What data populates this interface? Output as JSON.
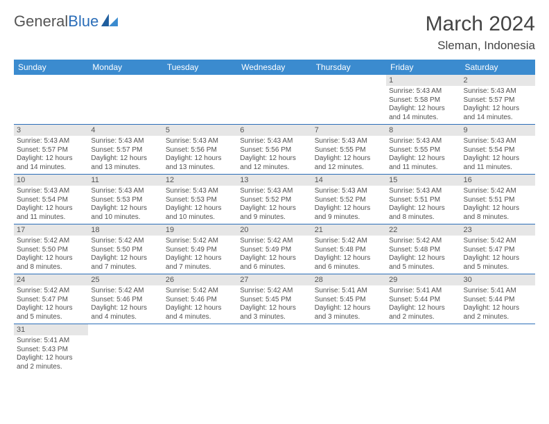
{
  "brand": {
    "part1": "General",
    "part2": "Blue"
  },
  "title": "March 2024",
  "location": "Sleman, Indonesia",
  "colors": {
    "header_bg": "#3b8bcf",
    "header_fg": "#ffffff",
    "daynum_bg": "#e6e6e6",
    "rule": "#2a6db8",
    "text": "#505050"
  },
  "weekdays": [
    "Sunday",
    "Monday",
    "Tuesday",
    "Wednesday",
    "Thursday",
    "Friday",
    "Saturday"
  ],
  "weeks": [
    [
      null,
      null,
      null,
      null,
      null,
      {
        "n": "1",
        "sr": "Sunrise: 5:43 AM",
        "ss": "Sunset: 5:58 PM",
        "d1": "Daylight: 12 hours",
        "d2": "and 14 minutes."
      },
      {
        "n": "2",
        "sr": "Sunrise: 5:43 AM",
        "ss": "Sunset: 5:57 PM",
        "d1": "Daylight: 12 hours",
        "d2": "and 14 minutes."
      }
    ],
    [
      {
        "n": "3",
        "sr": "Sunrise: 5:43 AM",
        "ss": "Sunset: 5:57 PM",
        "d1": "Daylight: 12 hours",
        "d2": "and 14 minutes."
      },
      {
        "n": "4",
        "sr": "Sunrise: 5:43 AM",
        "ss": "Sunset: 5:57 PM",
        "d1": "Daylight: 12 hours",
        "d2": "and 13 minutes."
      },
      {
        "n": "5",
        "sr": "Sunrise: 5:43 AM",
        "ss": "Sunset: 5:56 PM",
        "d1": "Daylight: 12 hours",
        "d2": "and 13 minutes."
      },
      {
        "n": "6",
        "sr": "Sunrise: 5:43 AM",
        "ss": "Sunset: 5:56 PM",
        "d1": "Daylight: 12 hours",
        "d2": "and 12 minutes."
      },
      {
        "n": "7",
        "sr": "Sunrise: 5:43 AM",
        "ss": "Sunset: 5:55 PM",
        "d1": "Daylight: 12 hours",
        "d2": "and 12 minutes."
      },
      {
        "n": "8",
        "sr": "Sunrise: 5:43 AM",
        "ss": "Sunset: 5:55 PM",
        "d1": "Daylight: 12 hours",
        "d2": "and 11 minutes."
      },
      {
        "n": "9",
        "sr": "Sunrise: 5:43 AM",
        "ss": "Sunset: 5:54 PM",
        "d1": "Daylight: 12 hours",
        "d2": "and 11 minutes."
      }
    ],
    [
      {
        "n": "10",
        "sr": "Sunrise: 5:43 AM",
        "ss": "Sunset: 5:54 PM",
        "d1": "Daylight: 12 hours",
        "d2": "and 11 minutes."
      },
      {
        "n": "11",
        "sr": "Sunrise: 5:43 AM",
        "ss": "Sunset: 5:53 PM",
        "d1": "Daylight: 12 hours",
        "d2": "and 10 minutes."
      },
      {
        "n": "12",
        "sr": "Sunrise: 5:43 AM",
        "ss": "Sunset: 5:53 PM",
        "d1": "Daylight: 12 hours",
        "d2": "and 10 minutes."
      },
      {
        "n": "13",
        "sr": "Sunrise: 5:43 AM",
        "ss": "Sunset: 5:52 PM",
        "d1": "Daylight: 12 hours",
        "d2": "and 9 minutes."
      },
      {
        "n": "14",
        "sr": "Sunrise: 5:43 AM",
        "ss": "Sunset: 5:52 PM",
        "d1": "Daylight: 12 hours",
        "d2": "and 9 minutes."
      },
      {
        "n": "15",
        "sr": "Sunrise: 5:43 AM",
        "ss": "Sunset: 5:51 PM",
        "d1": "Daylight: 12 hours",
        "d2": "and 8 minutes."
      },
      {
        "n": "16",
        "sr": "Sunrise: 5:42 AM",
        "ss": "Sunset: 5:51 PM",
        "d1": "Daylight: 12 hours",
        "d2": "and 8 minutes."
      }
    ],
    [
      {
        "n": "17",
        "sr": "Sunrise: 5:42 AM",
        "ss": "Sunset: 5:50 PM",
        "d1": "Daylight: 12 hours",
        "d2": "and 8 minutes."
      },
      {
        "n": "18",
        "sr": "Sunrise: 5:42 AM",
        "ss": "Sunset: 5:50 PM",
        "d1": "Daylight: 12 hours",
        "d2": "and 7 minutes."
      },
      {
        "n": "19",
        "sr": "Sunrise: 5:42 AM",
        "ss": "Sunset: 5:49 PM",
        "d1": "Daylight: 12 hours",
        "d2": "and 7 minutes."
      },
      {
        "n": "20",
        "sr": "Sunrise: 5:42 AM",
        "ss": "Sunset: 5:49 PM",
        "d1": "Daylight: 12 hours",
        "d2": "and 6 minutes."
      },
      {
        "n": "21",
        "sr": "Sunrise: 5:42 AM",
        "ss": "Sunset: 5:48 PM",
        "d1": "Daylight: 12 hours",
        "d2": "and 6 minutes."
      },
      {
        "n": "22",
        "sr": "Sunrise: 5:42 AM",
        "ss": "Sunset: 5:48 PM",
        "d1": "Daylight: 12 hours",
        "d2": "and 5 minutes."
      },
      {
        "n": "23",
        "sr": "Sunrise: 5:42 AM",
        "ss": "Sunset: 5:47 PM",
        "d1": "Daylight: 12 hours",
        "d2": "and 5 minutes."
      }
    ],
    [
      {
        "n": "24",
        "sr": "Sunrise: 5:42 AM",
        "ss": "Sunset: 5:47 PM",
        "d1": "Daylight: 12 hours",
        "d2": "and 5 minutes."
      },
      {
        "n": "25",
        "sr": "Sunrise: 5:42 AM",
        "ss": "Sunset: 5:46 PM",
        "d1": "Daylight: 12 hours",
        "d2": "and 4 minutes."
      },
      {
        "n": "26",
        "sr": "Sunrise: 5:42 AM",
        "ss": "Sunset: 5:46 PM",
        "d1": "Daylight: 12 hours",
        "d2": "and 4 minutes."
      },
      {
        "n": "27",
        "sr": "Sunrise: 5:42 AM",
        "ss": "Sunset: 5:45 PM",
        "d1": "Daylight: 12 hours",
        "d2": "and 3 minutes."
      },
      {
        "n": "28",
        "sr": "Sunrise: 5:41 AM",
        "ss": "Sunset: 5:45 PM",
        "d1": "Daylight: 12 hours",
        "d2": "and 3 minutes."
      },
      {
        "n": "29",
        "sr": "Sunrise: 5:41 AM",
        "ss": "Sunset: 5:44 PM",
        "d1": "Daylight: 12 hours",
        "d2": "and 2 minutes."
      },
      {
        "n": "30",
        "sr": "Sunrise: 5:41 AM",
        "ss": "Sunset: 5:44 PM",
        "d1": "Daylight: 12 hours",
        "d2": "and 2 minutes."
      }
    ],
    [
      {
        "n": "31",
        "sr": "Sunrise: 5:41 AM",
        "ss": "Sunset: 5:43 PM",
        "d1": "Daylight: 12 hours",
        "d2": "and 2 minutes."
      },
      null,
      null,
      null,
      null,
      null,
      null
    ]
  ]
}
